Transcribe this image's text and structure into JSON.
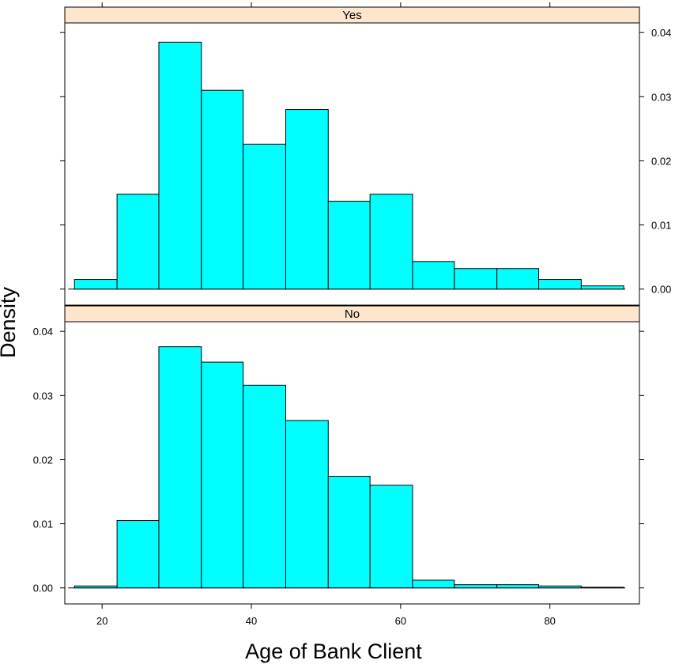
{
  "chart_data": {
    "type": "bar",
    "xlabel": "Age of Bank Client",
    "ylabel": "Density",
    "xlim": [
      15,
      92
    ],
    "ylim": [
      -0.0025,
      0.0415
    ],
    "x_ticks": [
      20,
      40,
      60,
      80
    ],
    "x_tick_labels": [
      "20",
      "40",
      "60",
      "80"
    ],
    "y_ticks": [
      0.0,
      0.01,
      0.02,
      0.03,
      0.04
    ],
    "y_tick_labels": [
      "0.00",
      "0.01",
      "0.02",
      "0.03",
      "0.04"
    ],
    "bin_edges": [
      16.3,
      22.0,
      27.6,
      33.3,
      38.9,
      44.6,
      50.3,
      55.9,
      61.6,
      67.2,
      72.9,
      78.5,
      84.2,
      89.9
    ],
    "bar_color": "#00ffff",
    "strip_color": "#ffe5cc",
    "grid": false,
    "panels": [
      {
        "strip_label": "Yes",
        "values": [
          0.0015,
          0.0148,
          0.0385,
          0.031,
          0.0226,
          0.028,
          0.0137,
          0.0148,
          0.0043,
          0.0032,
          0.0032,
          0.0015,
          0.0005
        ]
      },
      {
        "strip_label": "No",
        "values": [
          0.0003,
          0.0105,
          0.0376,
          0.0352,
          0.0316,
          0.0261,
          0.0174,
          0.016,
          0.0012,
          0.0005,
          0.0005,
          0.0003,
          0.0001
        ]
      }
    ]
  }
}
